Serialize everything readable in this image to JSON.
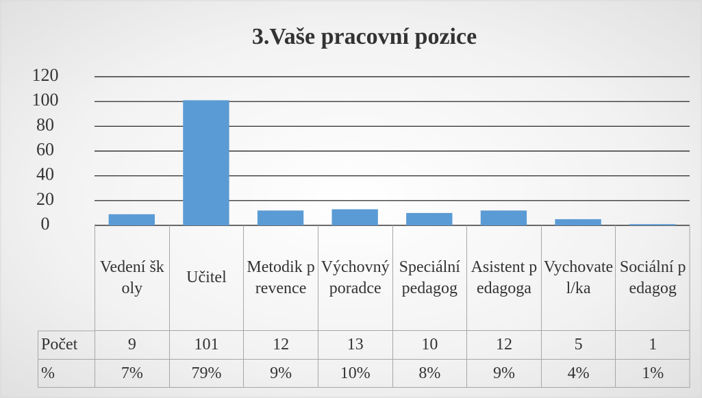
{
  "chart_data": {
    "type": "bar",
    "title": "3.Vaše pracovní pozice",
    "categories": [
      "Vedení školy",
      "Učitel",
      "Metodik prevence",
      "Výchovný poradce",
      "Speciální pedagog",
      "Asistent pedagoga",
      "Vychovatel/ka",
      "Sociální pedagog"
    ],
    "series": [
      {
        "name": "Počet",
        "color": "#5b9bd5",
        "values": [
          9,
          101,
          12,
          13,
          10,
          12,
          5,
          1
        ]
      }
    ],
    "percent_row": {
      "name": "%",
      "labels": [
        "7%",
        "79%",
        "9%",
        "10%",
        "8%",
        "9%",
        "4%",
        "1%"
      ]
    },
    "ylim": [
      0,
      120
    ],
    "yticks": [
      0,
      20,
      40,
      60,
      80,
      100,
      120
    ],
    "grid": true
  }
}
